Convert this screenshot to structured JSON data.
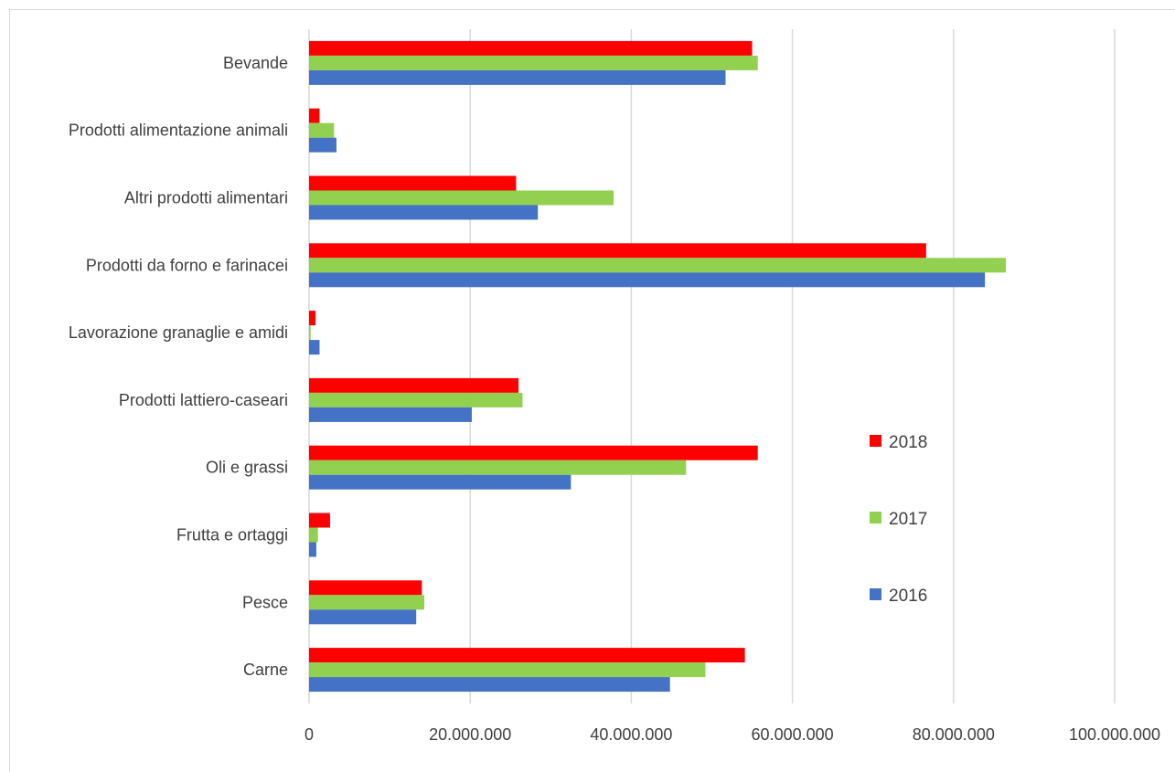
{
  "chart_data": {
    "type": "bar",
    "orientation": "horizontal",
    "categories": [
      "Carne",
      "Pesce",
      "Frutta e ortaggi",
      "Oli e grassi",
      "Prodotti lattiero-caseari",
      "Lavorazione granaglie e amidi",
      "Prodotti da forno e farinacei",
      "Altri prodotti alimentari",
      "Prodotti alimentazione animali",
      "Bevande"
    ],
    "series": [
      {
        "name": "2016",
        "color": "#4472c4",
        "values": [
          44800000,
          13300000,
          900000,
          32500000,
          20200000,
          1300000,
          83900000,
          28400000,
          3400000,
          51700000
        ]
      },
      {
        "name": "2017",
        "color": "#92d050",
        "values": [
          49200000,
          14300000,
          1100000,
          46800000,
          26500000,
          200000,
          86500000,
          37800000,
          3100000,
          55700000
        ]
      },
      {
        "name": "2018",
        "color": "#ff0000",
        "values": [
          54100000,
          14000000,
          2600000,
          55700000,
          26000000,
          800000,
          76600000,
          25700000,
          1300000,
          55000000
        ]
      }
    ],
    "xlim": [
      0,
      100000000
    ],
    "xticks": [
      0,
      20000000,
      40000000,
      60000000,
      80000000,
      100000000
    ],
    "xtick_labels": [
      "0",
      "20.000.000",
      "40.000.000",
      "60.000.000",
      "80.000.000",
      "100.000.000"
    ],
    "grid": true,
    "legend": {
      "position": "right",
      "order": [
        "2018",
        "2017",
        "2016"
      ]
    },
    "title": "",
    "xlabel": "",
    "ylabel": ""
  }
}
